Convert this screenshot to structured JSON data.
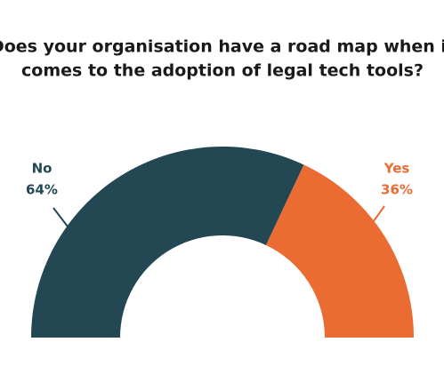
{
  "chart_data": {
    "type": "half-donut",
    "title": [
      "Does your organisation have a road map when it",
      "comes to the adoption of legal tech tools?"
    ],
    "categories": [
      "No",
      "Yes"
    ],
    "values": [
      64,
      36
    ],
    "value_labels": [
      "64%",
      "36%"
    ],
    "colors": [
      "#244853",
      "#ea6c33"
    ]
  }
}
